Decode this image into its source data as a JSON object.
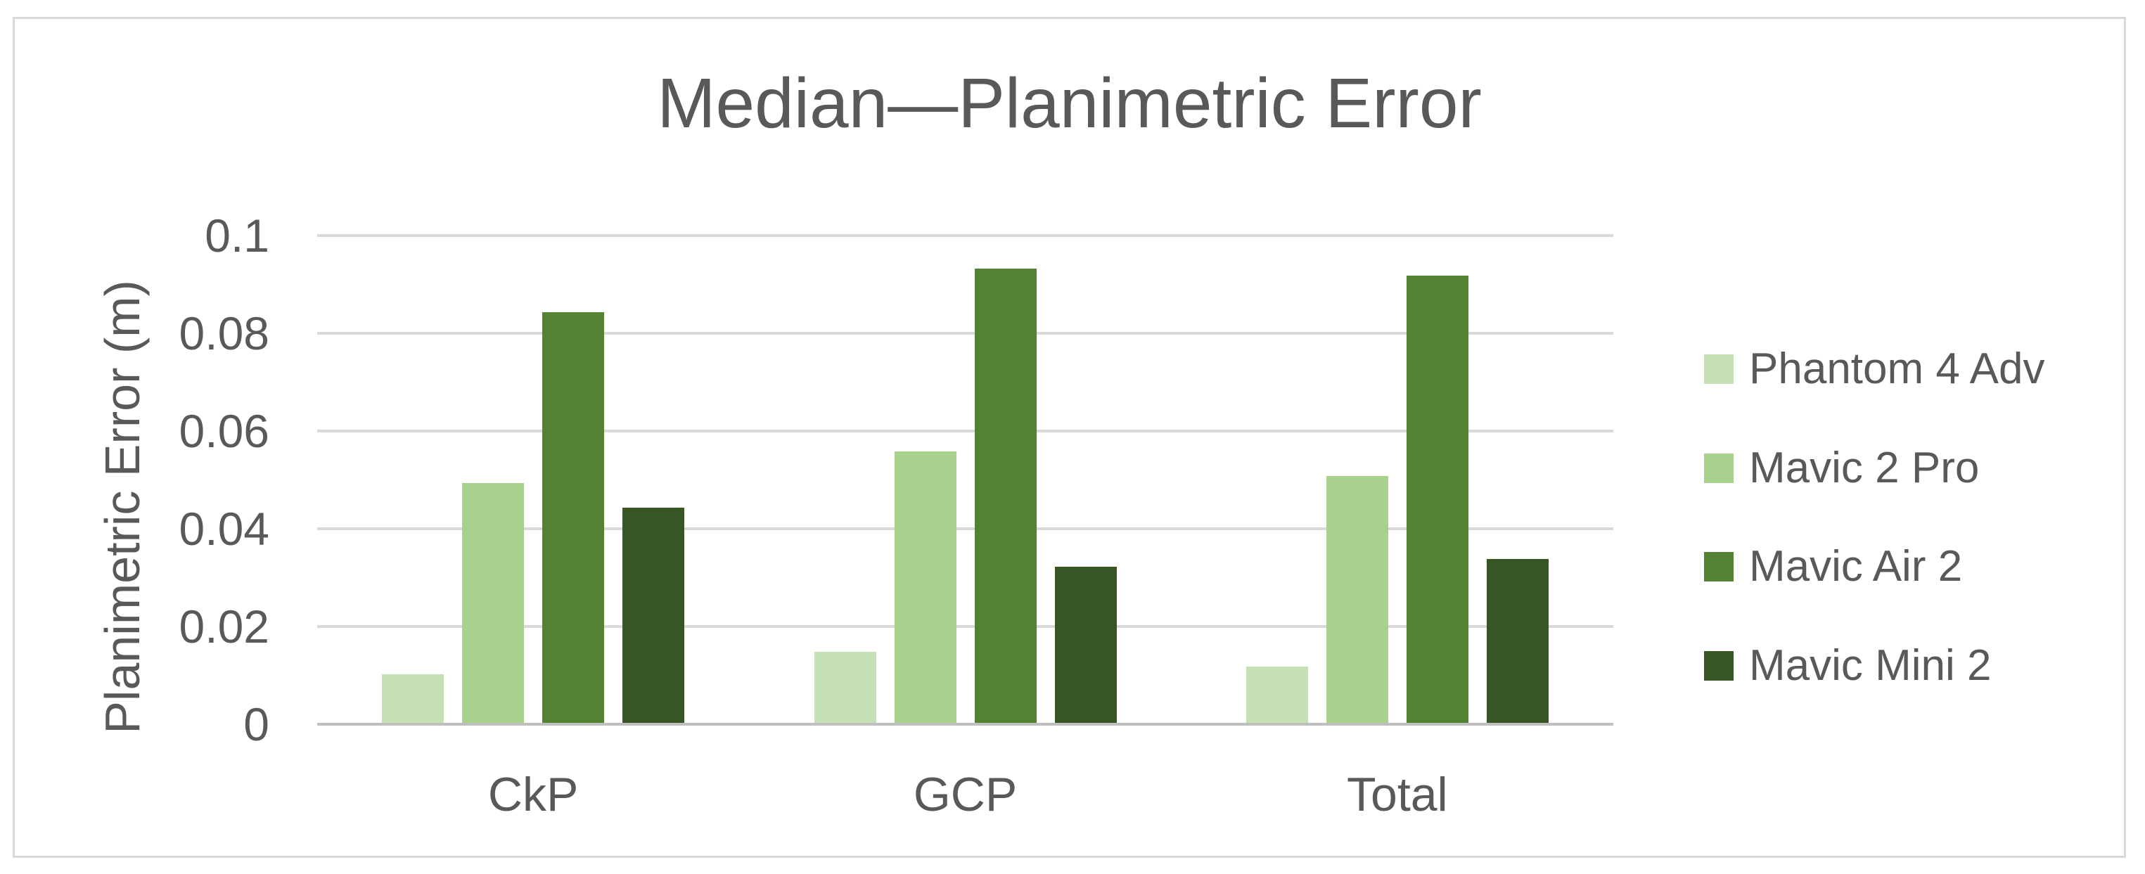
{
  "chart_data": {
    "type": "bar",
    "title": "Median—Planimetric Error",
    "xlabel": "",
    "ylabel": "Planimetric Error (m)",
    "categories": [
      "CkP",
      "GCP",
      "Total"
    ],
    "series": [
      {
        "name": "Phantom 4 Adv",
        "color": "#c5e0b4",
        "values": [
          0.01,
          0.0145,
          0.0115
        ]
      },
      {
        "name": "Mavic 2 Pro",
        "color": "#a9d18e",
        "values": [
          0.049,
          0.0555,
          0.0505
        ]
      },
      {
        "name": "Mavic Air 2",
        "color": "#548235",
        "values": [
          0.084,
          0.093,
          0.0915
        ]
      },
      {
        "name": "Mavic Mini 2",
        "color": "#375623",
        "values": [
          0.044,
          0.032,
          0.0335
        ]
      }
    ],
    "ylim": [
      0,
      0.1
    ],
    "yticks": [
      0,
      0.02,
      0.04,
      0.06,
      0.08,
      0.1
    ],
    "ytick_labels": [
      "0",
      "0.02",
      "0.04",
      "0.06",
      "0.08",
      "0.1"
    ],
    "grid": true,
    "legend_position": "right"
  },
  "colors": {
    "text": "#595959",
    "gridline": "#d9d9d9",
    "axis_line": "#bfbfbf",
    "frame_border": "#d9d9d9",
    "background": "#ffffff"
  }
}
